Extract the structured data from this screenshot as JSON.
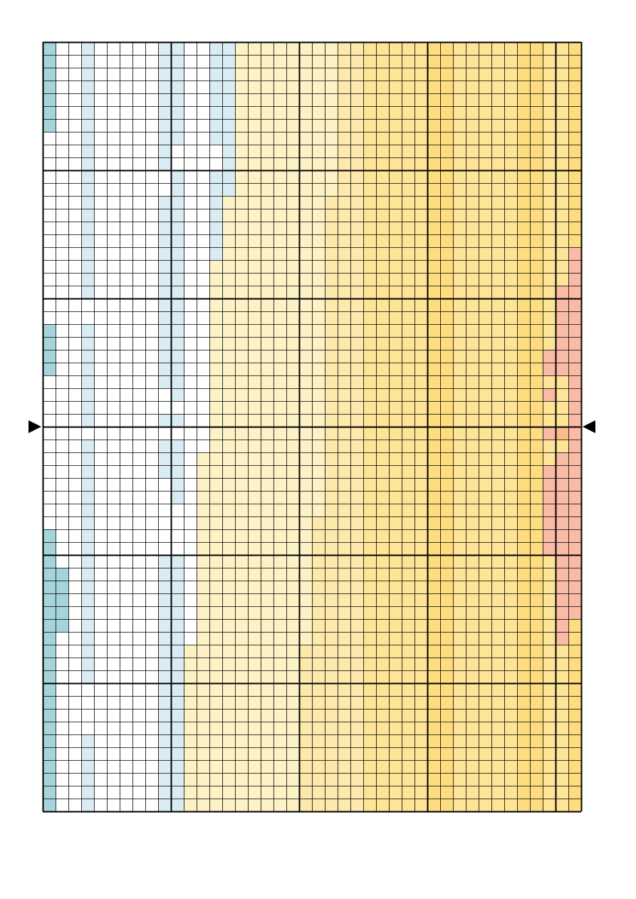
{
  "pattern": {
    "columns": 42,
    "rows": 60,
    "major_every": 10,
    "center_row_marker": 30,
    "palette": {
      "w": "#ffffff",
      "b": "#daecf3",
      "t": "#a5d5da",
      "c": "#fcf2c6",
      "y1": "#fde9ac",
      "y2": "#fde496",
      "y3": "#fedd80",
      "p": "#f9bba6",
      "o": "#fbbb88"
    },
    "line_colors": {
      "minor": "#000000",
      "major": "#000000",
      "marker": "#000000"
    },
    "band_edges": {
      "light_blue_end": [
        15,
        15,
        15,
        15,
        15,
        15,
        15,
        15,
        15,
        15,
        15,
        15,
        14,
        14,
        14,
        14,
        14,
        13,
        13,
        13,
        13,
        13,
        13,
        13,
        13,
        13,
        13,
        13,
        13,
        13,
        13,
        13,
        12,
        12,
        12,
        12,
        12,
        12,
        12,
        12,
        12,
        12,
        12,
        12,
        12,
        12,
        12,
        11,
        11,
        11,
        11,
        11,
        11,
        11,
        11,
        11,
        11,
        11,
        11,
        11
      ],
      "cream_end": [
        19,
        19,
        19,
        19,
        19,
        19,
        19,
        19,
        19,
        19,
        19,
        19,
        18,
        18,
        18,
        18,
        18,
        18,
        18,
        18,
        18,
        18,
        18,
        18,
        18,
        18,
        18,
        18,
        18,
        18,
        18,
        18,
        18,
        18,
        18,
        18,
        18,
        17,
        17,
        17,
        17,
        17,
        17,
        17,
        17,
        17,
        17,
        16,
        16,
        16,
        16,
        16,
        16,
        16,
        16,
        16,
        16,
        16,
        16,
        16
      ],
      "yellow_light_end": [
        29,
        29,
        29,
        29,
        29,
        29,
        29,
        29,
        29,
        29,
        29,
        29,
        29,
        29,
        29,
        29,
        29,
        28,
        28,
        28,
        28,
        28,
        28,
        28,
        28,
        28,
        28,
        28,
        28,
        28,
        28,
        28,
        28,
        28,
        28,
        28,
        28,
        28,
        28,
        28,
        28,
        28,
        28,
        28,
        28,
        28,
        28,
        28,
        28,
        28,
        28,
        28,
        28,
        28,
        29,
        29,
        29,
        29,
        29,
        29
      ]
    },
    "teal_cells": [
      [
        0,
        0
      ],
      [
        1,
        0
      ],
      [
        2,
        0
      ],
      [
        3,
        0
      ],
      [
        4,
        0
      ],
      [
        5,
        0
      ],
      [
        6,
        0
      ],
      [
        22,
        0
      ],
      [
        23,
        0
      ],
      [
        24,
        0
      ],
      [
        25,
        0
      ],
      [
        38,
        0
      ],
      [
        39,
        0
      ],
      [
        40,
        0
      ],
      [
        41,
        0
      ],
      [
        41,
        1
      ],
      [
        42,
        0
      ],
      [
        42,
        1
      ],
      [
        43,
        0
      ],
      [
        43,
        1
      ],
      [
        44,
        0
      ],
      [
        44,
        1
      ],
      [
        45,
        0
      ],
      [
        45,
        1
      ],
      [
        46,
        0
      ],
      [
        47,
        0
      ],
      [
        48,
        0
      ],
      [
        49,
        0
      ],
      [
        50,
        0
      ],
      [
        51,
        0
      ],
      [
        52,
        0
      ],
      [
        53,
        0
      ],
      [
        54,
        0
      ],
      [
        55,
        0
      ],
      [
        56,
        0
      ],
      [
        57,
        0
      ],
      [
        58,
        0
      ],
      [
        59,
        0
      ]
    ],
    "white_pockets": [
      [
        8,
        1,
        2
      ],
      [
        8,
        10,
        13
      ],
      [
        9,
        1,
        2
      ],
      [
        9,
        10,
        13
      ],
      [
        10,
        1,
        1
      ],
      [
        10,
        8,
        9
      ],
      [
        11,
        8,
        9
      ],
      [
        12,
        1,
        1
      ],
      [
        13,
        1,
        1
      ],
      [
        20,
        1,
        3
      ],
      [
        21,
        1,
        3
      ],
      [
        22,
        1,
        2
      ],
      [
        23,
        1,
        2
      ],
      [
        24,
        1,
        2
      ],
      [
        25,
        1,
        2
      ],
      [
        26,
        4,
        8
      ],
      [
        27,
        4,
        9
      ],
      [
        28,
        4,
        10
      ],
      [
        30,
        1,
        5
      ],
      [
        30,
        8,
        10
      ],
      [
        31,
        1,
        2
      ],
      [
        32,
        1,
        1
      ],
      [
        33,
        1,
        1
      ],
      [
        34,
        5,
        9
      ],
      [
        35,
        5,
        9
      ],
      [
        36,
        5,
        10
      ],
      [
        37,
        5,
        10
      ],
      [
        38,
        4,
        10
      ],
      [
        39,
        4,
        10
      ],
      [
        46,
        1,
        2
      ],
      [
        47,
        1,
        2
      ],
      [
        48,
        1,
        2
      ],
      [
        49,
        1,
        2
      ],
      [
        50,
        2,
        3
      ],
      [
        51,
        2,
        3
      ],
      [
        52,
        2,
        3
      ],
      [
        53,
        2,
        3
      ],
      [
        54,
        5,
        8
      ],
      [
        55,
        5,
        8
      ],
      [
        56,
        5,
        8
      ]
    ],
    "pink_cells": [
      [
        16,
        41,
        41
      ],
      [
        17,
        41,
        41
      ],
      [
        18,
        41,
        41
      ],
      [
        19,
        40,
        41
      ],
      [
        20,
        40,
        41
      ],
      [
        21,
        40,
        41
      ],
      [
        22,
        40,
        41
      ],
      [
        23,
        40,
        41
      ],
      [
        24,
        39,
        41
      ],
      [
        25,
        39,
        41
      ],
      [
        26,
        41,
        41
      ],
      [
        27,
        39,
        39
      ],
      [
        27,
        41,
        41
      ],
      [
        28,
        41,
        41
      ],
      [
        29,
        41,
        41
      ],
      [
        30,
        39,
        39
      ],
      [
        30,
        41,
        41
      ],
      [
        31,
        41,
        41
      ],
      [
        32,
        40,
        41
      ],
      [
        33,
        39,
        41
      ],
      [
        34,
        39,
        41
      ],
      [
        35,
        39,
        41
      ],
      [
        36,
        39,
        41
      ],
      [
        37,
        39,
        41
      ],
      [
        38,
        39,
        41
      ],
      [
        39,
        39,
        41
      ],
      [
        40,
        40,
        41
      ],
      [
        41,
        40,
        41
      ],
      [
        42,
        40,
        41
      ],
      [
        43,
        40,
        41
      ],
      [
        44,
        40,
        41
      ],
      [
        45,
        40,
        40
      ],
      [
        46,
        40,
        40
      ]
    ],
    "orange_cells": [
      [
        30,
        40
      ]
    ],
    "yellow_accent_cols": [
      30,
      31,
      37,
      38
    ]
  }
}
